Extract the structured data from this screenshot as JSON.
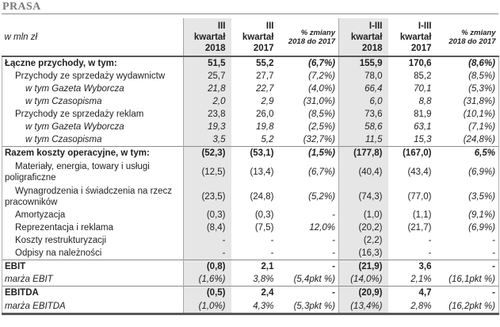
{
  "title": "PRASA",
  "table": {
    "header": {
      "unit_label": "w mln zł",
      "cols": [
        "III\nkwartał\n2018",
        "III\nkwartał\n2017",
        "% zmiany\n2018 do 2017",
        "I-III\nkwartał\n2018",
        "I-III\nkwartał\n2017",
        "% zmiany\n2018 do 2017"
      ]
    },
    "rows": [
      {
        "label": "Łączne przychody, w tym:",
        "values": [
          "51,5",
          "55,2",
          "(6,7%)",
          "155,9",
          "170,6",
          "(8,6%)"
        ]
      },
      {
        "label": "Przychody ze sprzedaży wydawnictw",
        "values": [
          "25,7",
          "27,7",
          "(7,2%)",
          "78,0",
          "85,2",
          "(8,5%)"
        ]
      },
      {
        "label": "w tym Gazeta Wyborcza",
        "values": [
          "21,8",
          "22,7",
          "(4,0%)",
          "66,4",
          "70,1",
          "(5,3%)"
        ]
      },
      {
        "label": "w tym Czasopisma",
        "values": [
          "2,0",
          "2,9",
          "(31,0%)",
          "6,0",
          "8,8",
          "(31,8%)"
        ]
      },
      {
        "label": "Przychody ze sprzedaży reklam",
        "values": [
          "23,8",
          "26,0",
          "(8,5%)",
          "73,6",
          "81,9",
          "(10,1%)"
        ]
      },
      {
        "label": "w tym Gazeta Wyborcza",
        "values": [
          "19,3",
          "19,8",
          "(2,5%)",
          "58,6",
          "63,1",
          "(7,1%)"
        ]
      },
      {
        "label": "w tym Czasopisma",
        "values": [
          "3,5",
          "5,2",
          "(32,7%)",
          "11,5",
          "15,3",
          "(24,8%)"
        ]
      },
      {
        "label": "Razem koszty operacyjne, w tym:",
        "values": [
          "(52,3)",
          "(53,1)",
          "(1,5%)",
          "(177,8)",
          "(167,0)",
          "6,5%"
        ]
      },
      {
        "label": "Materiały, energia, towary i usługi poligraficzne",
        "values": [
          "(12,5)",
          "(13,4)",
          "(6,7%)",
          "(40,4)",
          "(43,4)",
          "(6,9%)"
        ]
      },
      {
        "label": "Wynagrodzenia i świadczenia na rzecz pracowników",
        "values": [
          "(23,5)",
          "(24,8)",
          "(5,2%)",
          "(74,3)",
          "(77,0)",
          "(3,5%)"
        ]
      },
      {
        "label": "Amortyzacja",
        "values": [
          "(0,3)",
          "(0,3)",
          "-",
          "(1,0)",
          "(1,1)",
          "(9,1%)"
        ]
      },
      {
        "label": "Reprezentacja i reklama",
        "values": [
          "(8,4)",
          "(7,5)",
          "12,0%",
          "(20,2)",
          "(21,7)",
          "(6,9%)"
        ]
      },
      {
        "label": "Koszty restrukturyzacji",
        "values": [
          "-",
          "-",
          "-",
          "(2,2)",
          "-",
          "-"
        ]
      },
      {
        "label": "Odpisy na należności",
        "values": [
          "-",
          "-",
          "-",
          "(16,3)",
          "-",
          "-"
        ]
      },
      {
        "label": "EBIT",
        "values": [
          "(0,8)",
          "2,1",
          "-",
          "(21,9)",
          "3,6",
          "-"
        ]
      },
      {
        "label": "marża EBIT",
        "values": [
          "(1,6%)",
          "3,8%",
          "(5,4pkt %)",
          "(14,0%)",
          "2,1%",
          "(16,1pkt %)"
        ]
      },
      {
        "label": "EBITDA",
        "values": [
          "(0,5)",
          "2,4",
          "-",
          "(20,9)",
          "4,7",
          "-"
        ]
      },
      {
        "label": "marża EBITDA",
        "values": [
          "(1,0%)",
          "4,3%",
          "(5,3pkt %)",
          "(13,4%)",
          "2,8%",
          "(16,2pkt %)"
        ]
      }
    ]
  }
}
